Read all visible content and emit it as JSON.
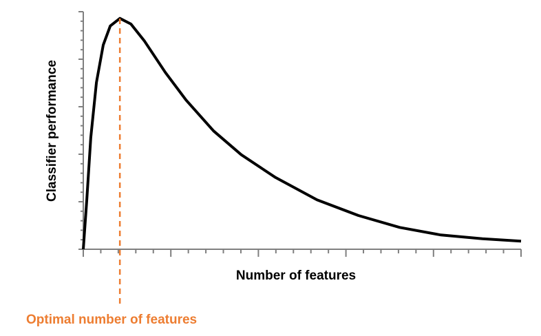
{
  "chart_data": {
    "type": "line",
    "x_label": "Number of features",
    "y_label": "Classifier performance",
    "x": [
      0,
      0.2,
      0.43,
      0.75,
      1.14,
      1.54,
      2.09,
      2.72,
      3.5,
      4.69,
      5.87,
      7.44,
      9.02,
      10.98,
      13.35,
      15.71,
      18.07,
      20.43,
      22.8,
      25
    ],
    "values": [
      0,
      1.04,
      2.35,
      3.51,
      4.3,
      4.7,
      4.86,
      4.74,
      4.38,
      3.72,
      3.14,
      2.49,
      1.99,
      1.51,
      1.04,
      0.71,
      0.46,
      0.3,
      0.22,
      0.17
    ],
    "color": "#000000",
    "xlim": [
      0,
      25
    ],
    "ylim": [
      0,
      5
    ],
    "xticks": [
      0,
      5,
      10,
      15,
      20,
      25
    ],
    "yticks": [
      0,
      1,
      2,
      3,
      4,
      5
    ],
    "x_minor_ticks": [
      1,
      2,
      3,
      4,
      6,
      7,
      8,
      9,
      11,
      12,
      13,
      14,
      16,
      17,
      18,
      19,
      21,
      22,
      23,
      24
    ],
    "y_minor_ticks": [
      0.2,
      0.4,
      0.6,
      0.8,
      1.2,
      1.4,
      1.6,
      1.8,
      2.2,
      2.4,
      2.6,
      2.8,
      3.2,
      3.4,
      3.6,
      3.8,
      4.2,
      4.4,
      4.6,
      4.8
    ],
    "annotation": {
      "text": "Optimal number of features",
      "x": 2.09,
      "color": "#ED7D31"
    }
  }
}
